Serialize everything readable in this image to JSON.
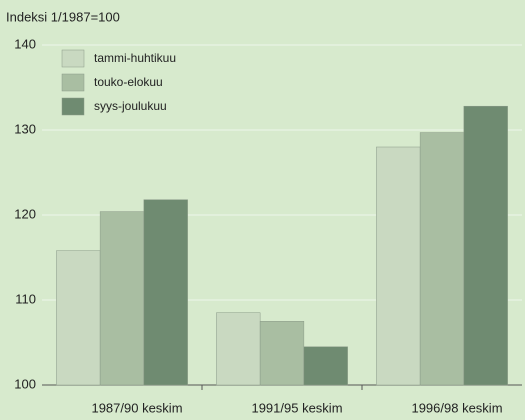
{
  "chart_data": {
    "type": "bar",
    "title": "Indeksi 1/1987=100",
    "categories": [
      "1987/90 keskim",
      "1991/95 keskim",
      "1996/98 keskim"
    ],
    "series": [
      {
        "name": "tammi-huhtikuu",
        "color": "#c9d9c1",
        "values": [
          115.8,
          108.5,
          128
        ]
      },
      {
        "name": "touko-elokuu",
        "color": "#a9bea2",
        "values": [
          120.4,
          107.5,
          129.7
        ]
      },
      {
        "name": "syys-joulukuu",
        "color": "#6f8b71",
        "values": [
          121.8,
          104.5,
          132.8
        ]
      }
    ],
    "ylim": [
      100,
      140
    ],
    "yticks": [
      100,
      110,
      120,
      130,
      140
    ],
    "grid": true,
    "legend": "top-left"
  }
}
